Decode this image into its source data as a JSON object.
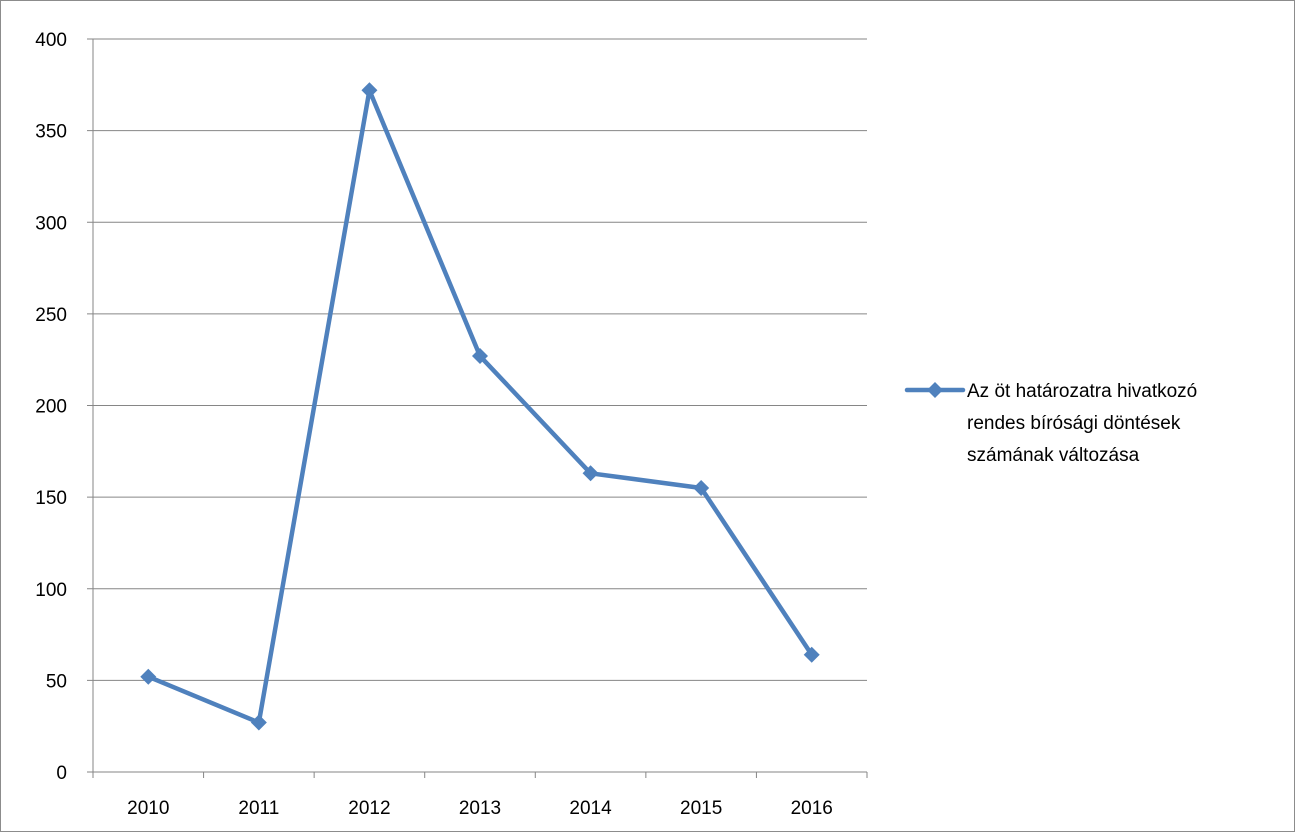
{
  "chart_data": {
    "type": "line",
    "categories": [
      "2010",
      "2011",
      "2012",
      "2013",
      "2014",
      "2015",
      "2016"
    ],
    "series": [
      {
        "name": "Az öt határozatra hivatkozó rendes bírósági döntések számának változása",
        "legend_lines": [
          "Az öt határozatra hivatkozó",
          "rendes bírósági döntések",
          "számának változása"
        ],
        "values": [
          52,
          27,
          372,
          227,
          163,
          155,
          64
        ],
        "color": "#4f81bd"
      }
    ],
    "y_ticks": [
      "0",
      "50",
      "100",
      "150",
      "200",
      "250",
      "300",
      "350",
      "400"
    ],
    "ylim": [
      0,
      400
    ],
    "grid": true,
    "legend_position": "right",
    "title": "",
    "xlabel": "",
    "ylabel": ""
  },
  "colors": {
    "series": "#4f81bd",
    "grid": "#868686",
    "frame": "#8c8c8c"
  }
}
